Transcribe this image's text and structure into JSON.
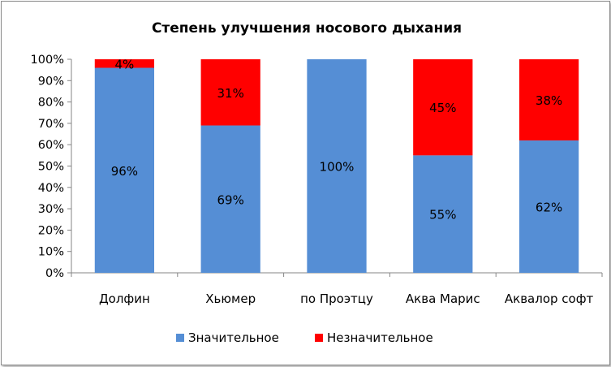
{
  "chart_data": {
    "type": "bar",
    "stacked": true,
    "percent": true,
    "title": "Степень улучшения носового дыхания",
    "categories": [
      "Долфин",
      "Хьюмер",
      "по Проэтцу",
      "Аква Марис",
      "Аквалор софт"
    ],
    "series": [
      {
        "name": "Значительное",
        "values": [
          96,
          69,
          100,
          55,
          62
        ],
        "labels": [
          "96%",
          "69%",
          "100%",
          "55%",
          "62%"
        ],
        "color": "#558ed5"
      },
      {
        "name": "Незначительное",
        "values": [
          4,
          31,
          0,
          45,
          38
        ],
        "labels": [
          "4%",
          "31%",
          "",
          "45%",
          "38%"
        ],
        "color": "#ff0000"
      }
    ],
    "ylim": [
      0,
      100
    ],
    "yticks": [
      "0%",
      "10%",
      "20%",
      "30%",
      "40%",
      "50%",
      "60%",
      "70%",
      "80%",
      "90%",
      "100%"
    ],
    "grid": false,
    "legend_position": "bottom"
  }
}
